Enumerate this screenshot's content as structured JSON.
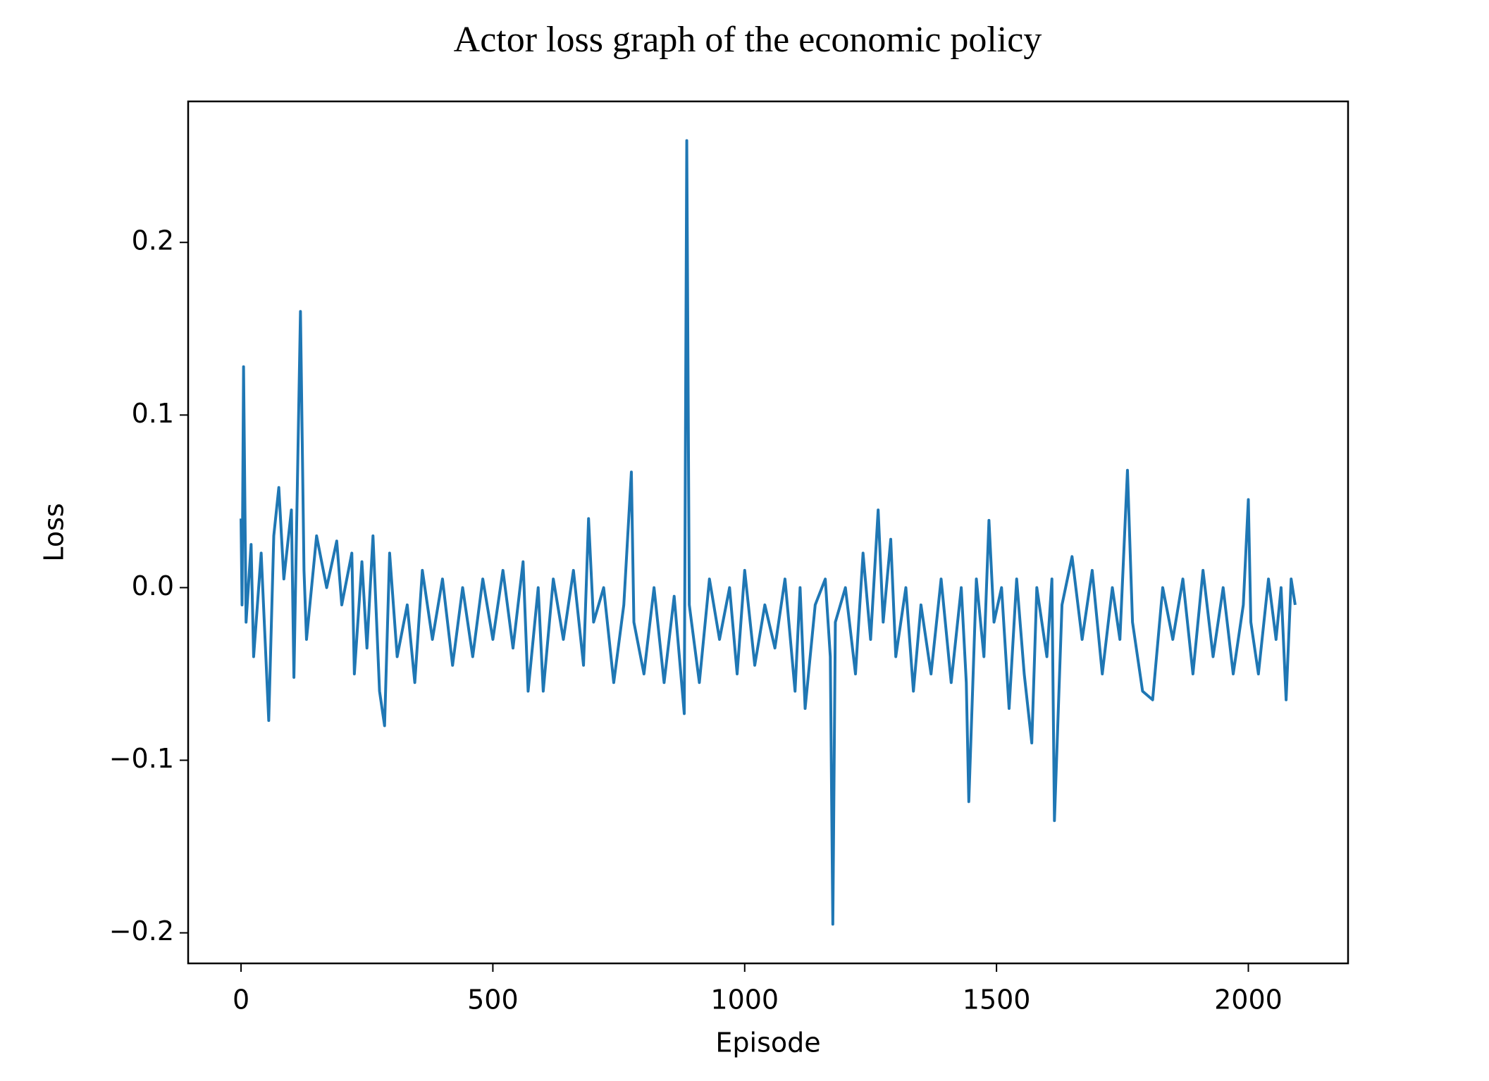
{
  "chart_data": {
    "type": "line",
    "title": "Actor loss graph of the economic policy",
    "xlabel": "Episode",
    "ylabel": "Loss",
    "xlim": [
      -105,
      2198
    ],
    "ylim": [
      -0.2177,
      0.2817
    ],
    "xticks": [
      0,
      500,
      1000,
      1500,
      2000
    ],
    "yticks": [
      {
        "value": -0.2,
        "label": "−0.2"
      },
      {
        "value": -0.1,
        "label": "−0.1"
      },
      {
        "value": 0,
        "label": "0.0"
      },
      0.1,
      0.2
    ],
    "series": [
      {
        "name": "Loss",
        "color": "#1f77b4",
        "x": [
          0,
          2,
          5,
          10,
          20,
          25,
          40,
          55,
          65,
          75,
          85,
          100,
          105,
          118,
          125,
          130,
          150,
          170,
          190,
          200,
          220,
          225,
          240,
          250,
          262,
          275,
          285,
          295,
          310,
          330,
          345,
          360,
          380,
          400,
          420,
          440,
          460,
          480,
          500,
          520,
          540,
          560,
          570,
          590,
          600,
          620,
          640,
          660,
          680,
          690,
          700,
          720,
          740,
          760,
          775,
          780,
          800,
          820,
          840,
          860,
          880,
          885,
          890,
          910,
          930,
          950,
          970,
          985,
          1000,
          1020,
          1040,
          1060,
          1080,
          1100,
          1110,
          1120,
          1140,
          1160,
          1170,
          1175,
          1180,
          1200,
          1220,
          1235,
          1250,
          1265,
          1275,
          1290,
          1300,
          1320,
          1335,
          1350,
          1370,
          1390,
          1410,
          1430,
          1440,
          1445,
          1460,
          1475,
          1485,
          1495,
          1510,
          1525,
          1540,
          1555,
          1570,
          1580,
          1600,
          1610,
          1615,
          1630,
          1650,
          1670,
          1690,
          1710,
          1730,
          1745,
          1760,
          1770,
          1790,
          1810,
          1830,
          1850,
          1870,
          1890,
          1910,
          1930,
          1950,
          1970,
          1990,
          2000,
          2005,
          2020,
          2040,
          2055,
          2065,
          2075,
          2085,
          2093
        ],
        "values": [
          0.04,
          -0.01,
          0.128,
          -0.02,
          0.025,
          -0.04,
          0.02,
          -0.077,
          0.03,
          0.058,
          0.005,
          0.045,
          -0.052,
          0.16,
          0.01,
          -0.03,
          0.03,
          0.0,
          0.027,
          -0.01,
          0.02,
          -0.05,
          0.015,
          -0.035,
          0.03,
          -0.06,
          -0.08,
          0.02,
          -0.04,
          -0.01,
          -0.055,
          0.01,
          -0.03,
          0.005,
          -0.045,
          0.0,
          -0.04,
          0.005,
          -0.03,
          0.01,
          -0.035,
          0.015,
          -0.06,
          0.0,
          -0.06,
          0.005,
          -0.03,
          0.01,
          -0.045,
          0.04,
          -0.02,
          0.0,
          -0.055,
          -0.01,
          0.067,
          -0.02,
          -0.05,
          0.0,
          -0.055,
          -0.005,
          -0.073,
          0.259,
          -0.01,
          -0.055,
          0.005,
          -0.03,
          0.0,
          -0.05,
          0.01,
          -0.045,
          -0.01,
          -0.035,
          0.005,
          -0.06,
          0.0,
          -0.07,
          -0.01,
          0.005,
          -0.04,
          -0.195,
          -0.02,
          0.0,
          -0.05,
          0.02,
          -0.03,
          0.045,
          -0.02,
          0.028,
          -0.04,
          0.0,
          -0.06,
          -0.01,
          -0.05,
          0.005,
          -0.055,
          0.0,
          -0.055,
          -0.124,
          0.005,
          -0.04,
          0.039,
          -0.02,
          0.0,
          -0.07,
          0.005,
          -0.05,
          -0.09,
          0.0,
          -0.04,
          0.005,
          -0.135,
          -0.01,
          0.018,
          -0.03,
          0.01,
          -0.05,
          0.0,
          -0.03,
          0.068,
          -0.02,
          -0.06,
          -0.065,
          0.0,
          -0.03,
          0.005,
          -0.05,
          0.01,
          -0.04,
          0.0,
          -0.05,
          -0.01,
          0.051,
          -0.02,
          -0.05,
          0.005,
          -0.03,
          0.0,
          -0.065,
          0.005,
          -0.01
        ]
      }
    ]
  }
}
